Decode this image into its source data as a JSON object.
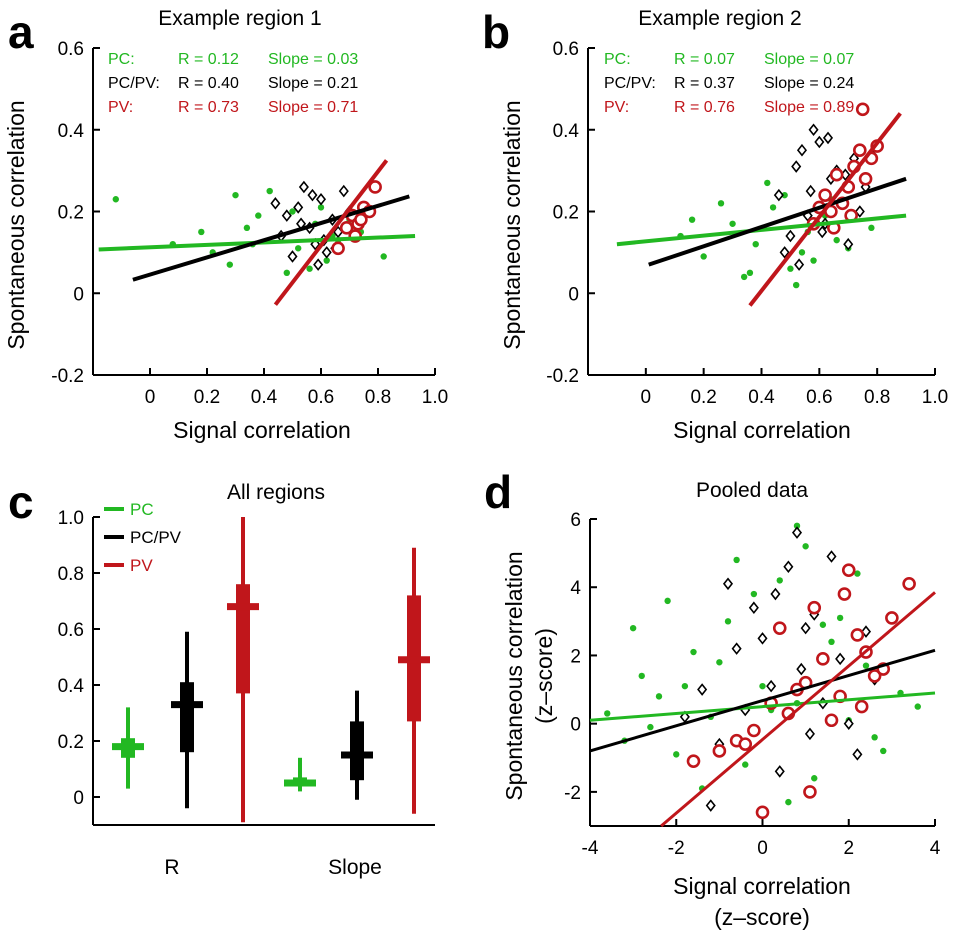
{
  "colors": {
    "pc": "#22b822",
    "pcpv": "#000000",
    "pv": "#c0161b"
  },
  "chart_data": [
    {
      "panel": "a",
      "type": "scatter",
      "title": "Example region 1",
      "xlabel": "Signal correlation",
      "ylabel": "Spontaneous correlation",
      "xlim": [
        -0.2,
        1.0
      ],
      "ylim": [
        -0.2,
        0.6
      ],
      "xticks": [
        0,
        0.2,
        0.4,
        0.6,
        0.8,
        1.0
      ],
      "xtick_labels": [
        "0",
        "0.2",
        "0.4",
        "0.6",
        "0.8",
        "1.0"
      ],
      "yticks": [
        -0.2,
        0,
        0.2,
        0.4,
        0.6
      ],
      "ytick_labels": [
        "-0.2",
        "0",
        "0.2",
        "0.4",
        "0.6"
      ],
      "stats": [
        {
          "group": "PC",
          "label": "PC:",
          "r": "R = 0.12",
          "slope": "Slope = 0.03",
          "color": "#22b822"
        },
        {
          "group": "PC/PV",
          "label": "PC/PV:",
          "r": "R = 0.40",
          "slope": "Slope = 0.21",
          "color": "#000000"
        },
        {
          "group": "PV",
          "label": "PV:",
          "r": "R = 0.73",
          "slope": "Slope = 0.71",
          "color": "#c0161b"
        }
      ],
      "fits": [
        {
          "group": "PC",
          "x": [
            -0.18,
            0.93
          ],
          "y": [
            0.107,
            0.14
          ]
        },
        {
          "group": "PC/PV",
          "x": [
            -0.06,
            0.91
          ],
          "y": [
            0.033,
            0.237
          ]
        },
        {
          "group": "PV",
          "x": [
            0.44,
            0.83
          ],
          "y": [
            -0.028,
            0.325
          ]
        }
      ],
      "scatter_points": [
        {
          "group": "PC",
          "x": [
            0.08,
            0.22,
            0.34,
            0.38,
            0.46,
            0.52,
            0.58,
            0.66,
            0.74,
            0.82,
            0.28,
            0.44,
            0.62,
            0.5,
            0.36,
            0.7,
            0.18,
            0.56,
            0.42,
            0.64,
            -0.12,
            0.3,
            0.48,
            0.6
          ],
          "y": [
            0.12,
            0.1,
            0.16,
            0.19,
            0.14,
            0.11,
            0.17,
            0.13,
            0.15,
            0.09,
            0.07,
            0.22,
            0.08,
            0.2,
            0.12,
            0.18,
            0.15,
            0.06,
            0.25,
            0.14,
            0.23,
            0.24,
            0.05,
            0.21
          ]
        },
        {
          "group": "PC/PV",
          "x": [
            0.46,
            0.52,
            0.56,
            0.6,
            0.64,
            0.68,
            0.5,
            0.58,
            0.62,
            0.54,
            0.66,
            0.48,
            0.44,
            0.7,
            0.57,
            0.61,
            0.53,
            0.65,
            0.59,
            0.72
          ],
          "y": [
            0.14,
            0.21,
            0.16,
            0.23,
            0.18,
            0.25,
            0.09,
            0.12,
            0.1,
            0.26,
            0.15,
            0.19,
            0.22,
            0.2,
            0.24,
            0.13,
            0.17,
            0.11,
            0.07,
            0.16
          ]
        },
        {
          "group": "PV",
          "x": [
            0.71,
            0.73,
            0.75,
            0.77,
            0.79,
            0.72,
            0.74,
            0.69,
            0.66
          ],
          "y": [
            0.19,
            0.17,
            0.21,
            0.2,
            0.26,
            0.14,
            0.18,
            0.16,
            0.11
          ]
        }
      ]
    },
    {
      "panel": "b",
      "type": "scatter",
      "title": "Example region 2",
      "xlabel": "Signal correlation",
      "ylabel": "Spontaneous correlation",
      "xlim": [
        -0.2,
        1.0
      ],
      "ylim": [
        -0.2,
        0.6
      ],
      "xticks": [
        0,
        0.2,
        0.4,
        0.6,
        0.8,
        1.0
      ],
      "xtick_labels": [
        "0",
        "0.2",
        "0.4",
        "0.6",
        "0.8",
        "1.0"
      ],
      "yticks": [
        -0.2,
        0,
        0.2,
        0.4,
        0.6
      ],
      "ytick_labels": [
        "-0.2",
        "0",
        "0.2",
        "0.4",
        "0.6"
      ],
      "stats": [
        {
          "group": "PC",
          "label": "PC:",
          "r": "R = 0.07",
          "slope": "Slope = 0.07",
          "color": "#22b822"
        },
        {
          "group": "PC/PV",
          "label": "PC/PV:",
          "r": "R = 0.37",
          "slope": "Slope = 0.24",
          "color": "#000000"
        },
        {
          "group": "PV",
          "label": "PV:",
          "r": "R = 0.76",
          "slope": "Slope = 0.89",
          "color": "#c0161b"
        }
      ],
      "fits": [
        {
          "group": "PC",
          "x": [
            -0.1,
            0.9
          ],
          "y": [
            0.12,
            0.19
          ]
        },
        {
          "group": "PC/PV",
          "x": [
            0.01,
            0.9
          ],
          "y": [
            0.07,
            0.28
          ]
        },
        {
          "group": "PV",
          "x": [
            0.36,
            0.88
          ],
          "y": [
            -0.03,
            0.44
          ]
        }
      ],
      "scatter_points": [
        {
          "group": "PC",
          "x": [
            0.12,
            0.2,
            0.3,
            0.38,
            0.44,
            0.5,
            0.56,
            0.62,
            0.7,
            0.78,
            0.26,
            0.36,
            0.48,
            0.58,
            0.66,
            0.74,
            0.16,
            0.42,
            0.54,
            0.64,
            0.34,
            0.52
          ],
          "y": [
            0.14,
            0.09,
            0.17,
            0.12,
            0.21,
            0.06,
            0.15,
            0.19,
            0.11,
            0.16,
            0.22,
            0.05,
            0.24,
            0.08,
            0.13,
            0.2,
            0.18,
            0.27,
            0.1,
            0.23,
            0.04,
            0.02
          ]
        },
        {
          "group": "PC/PV",
          "x": [
            0.46,
            0.52,
            0.56,
            0.6,
            0.64,
            0.68,
            0.72,
            0.76,
            0.5,
            0.58,
            0.62,
            0.66,
            0.7,
            0.54,
            0.48,
            0.74,
            0.57,
            0.63,
            0.69,
            0.53,
            0.61,
            0.78
          ],
          "y": [
            0.24,
            0.31,
            0.19,
            0.37,
            0.28,
            0.22,
            0.33,
            0.26,
            0.14,
            0.4,
            0.17,
            0.3,
            0.12,
            0.35,
            0.1,
            0.2,
            0.25,
            0.38,
            0.29,
            0.07,
            0.15,
            0.34
          ]
        },
        {
          "group": "PV",
          "x": [
            0.58,
            0.62,
            0.64,
            0.66,
            0.68,
            0.7,
            0.72,
            0.74,
            0.76,
            0.78,
            0.8,
            0.6,
            0.65,
            0.71,
            0.75
          ],
          "y": [
            0.17,
            0.24,
            0.2,
            0.29,
            0.22,
            0.26,
            0.31,
            0.35,
            0.28,
            0.33,
            0.36,
            0.21,
            0.16,
            0.19,
            0.45
          ]
        }
      ]
    },
    {
      "panel": "c",
      "type": "box",
      "title": "All regions",
      "categories": [
        "R",
        "Slope"
      ],
      "ylim": [
        -0.1,
        1.0
      ],
      "yticks": [
        0,
        0.2,
        0.4,
        0.6,
        0.8,
        1.0
      ],
      "ytick_labels": [
        "0",
        "0.2",
        "0.4",
        "0.6",
        "0.8",
        "1.0"
      ],
      "legend": [
        "PC",
        "PC/PV",
        "PV"
      ],
      "series": [
        {
          "name": "PC",
          "color": "#22b822",
          "R": {
            "min": 0.03,
            "q1": 0.14,
            "median": 0.18,
            "q3": 0.21,
            "max": 0.32
          },
          "Slope": {
            "min": 0.02,
            "q1": 0.04,
            "median": 0.05,
            "q3": 0.07,
            "max": 0.14
          }
        },
        {
          "name": "PC/PV",
          "color": "#000000",
          "R": {
            "min": -0.04,
            "q1": 0.16,
            "median": 0.33,
            "q3": 0.41,
            "max": 0.59
          },
          "Slope": {
            "min": -0.01,
            "q1": 0.06,
            "median": 0.15,
            "q3": 0.27,
            "max": 0.38
          }
        },
        {
          "name": "PV",
          "color": "#c0161b",
          "R": {
            "min": -0.09,
            "q1": 0.37,
            "median": 0.68,
            "q3": 0.76,
            "max": 1.0
          },
          "Slope": {
            "min": -0.06,
            "q1": 0.27,
            "median": 0.49,
            "q3": 0.72,
            "max": 0.89
          }
        }
      ]
    },
    {
      "panel": "d",
      "type": "scatter",
      "title": "Pooled data",
      "xlabel": "Signal correlation",
      "xlabel2": "(z–score)",
      "ylabel": "Spontaneous correlation",
      "ylabel2": "(z–score)",
      "xlim": [
        -4,
        4
      ],
      "ylim": [
        -3,
        6
      ],
      "xticks": [
        -4,
        -2,
        0,
        2,
        4
      ],
      "xtick_labels": [
        "-4",
        "-2",
        "0",
        "2",
        "4"
      ],
      "yticks": [
        -2,
        0,
        2,
        4,
        6
      ],
      "ytick_labels": [
        "-2",
        "0",
        "2",
        "4",
        "6"
      ],
      "fits": [
        {
          "group": "PC",
          "x": [
            -4,
            4
          ],
          "y": [
            0.1,
            0.9
          ]
        },
        {
          "group": "PC/PV",
          "x": [
            -4,
            4
          ],
          "y": [
            -0.8,
            2.15
          ]
        },
        {
          "group": "PV",
          "x": [
            -2.35,
            4
          ],
          "y": [
            -3.0,
            3.85
          ]
        }
      ],
      "scatter_points": [
        {
          "group": "PC",
          "x": [
            -3.6,
            -3.2,
            -2.8,
            -2.4,
            -2.0,
            -1.6,
            -1.2,
            -0.8,
            -0.4,
            0.0,
            0.4,
            0.8,
            1.2,
            1.6,
            2.0,
            2.4,
            2.8,
            3.2,
            -3.0,
            -2.2,
            -1.4,
            -0.6,
            0.2,
            1.0,
            1.8,
            2.6,
            -1.0,
            0.6,
            1.4,
            -2.6,
            -1.8,
            2.2,
            -0.2,
            3.6,
            0.8
          ],
          "y": [
            0.3,
            -0.5,
            1.4,
            0.8,
            -0.9,
            2.1,
            0.2,
            3.0,
            -1.2,
            1.1,
            4.2,
            0.6,
            -1.6,
            2.4,
            0.1,
            1.7,
            -0.8,
            0.9,
            2.8,
            3.6,
            -1.9,
            4.8,
            0.4,
            5.2,
            3.1,
            -0.4,
            1.8,
            -2.3,
            2.9,
            -0.1,
            1.1,
            4.4,
            3.8,
            0.5,
            5.8
          ]
        },
        {
          "group": "PC/PV",
          "x": [
            -1.8,
            -1.4,
            -1.0,
            -0.6,
            -0.2,
            0.2,
            0.6,
            1.0,
            1.4,
            1.8,
            2.2,
            2.6,
            -0.8,
            0.4,
            0.8,
            1.2,
            -0.4,
            0.0,
            1.6,
            2.0,
            -1.2,
            0.9,
            0.3,
            1.1,
            2.4
          ],
          "y": [
            0.2,
            1.0,
            -0.6,
            2.2,
            3.4,
            1.1,
            4.6,
            2.8,
            0.6,
            1.9,
            -0.9,
            1.3,
            4.1,
            -1.4,
            5.6,
            3.2,
            0.4,
            2.5,
            4.9,
            0.0,
            -2.4,
            1.6,
            3.8,
            -0.3,
            2.7
          ]
        },
        {
          "group": "PV",
          "x": [
            -1.6,
            -1.0,
            -0.6,
            -0.2,
            0.2,
            0.6,
            1.0,
            1.4,
            1.8,
            2.2,
            2.6,
            3.0,
            3.4,
            0.4,
            0.8,
            1.2,
            1.6,
            2.0,
            2.4,
            2.8,
            -0.4,
            1.1,
            1.9,
            2.3,
            0.0
          ],
          "y": [
            -1.1,
            -0.8,
            -0.5,
            -0.2,
            0.6,
            0.3,
            1.2,
            1.9,
            0.8,
            2.6,
            1.4,
            3.1,
            4.1,
            2.8,
            1.0,
            3.4,
            0.1,
            4.5,
            2.1,
            1.6,
            -0.6,
            -2.0,
            3.8,
            0.5,
            -2.6
          ]
        }
      ]
    }
  ]
}
